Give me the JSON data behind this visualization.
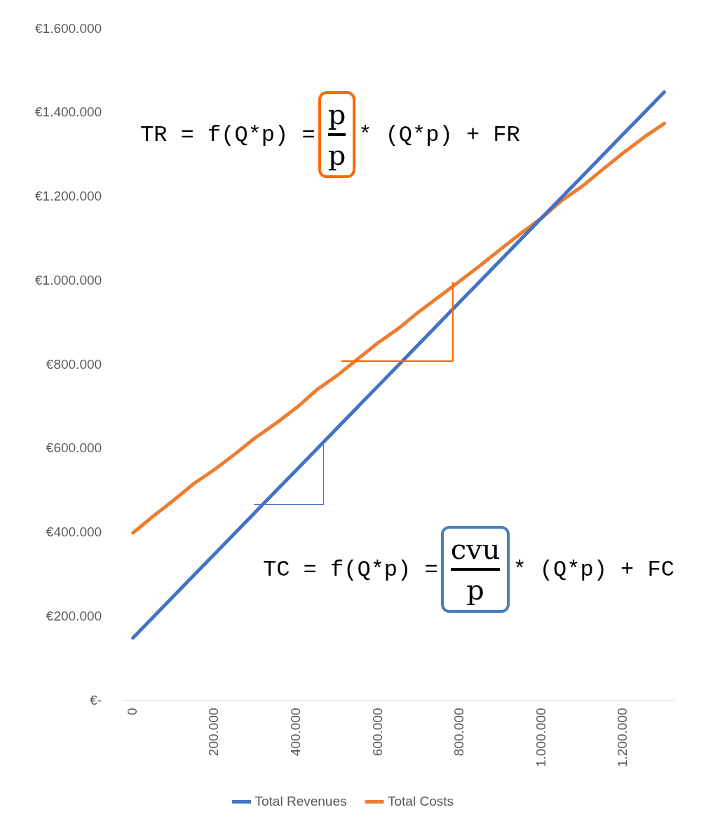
{
  "chart_data": {
    "type": "line",
    "categories": [
      "0",
      null,
      null,
      null,
      "200.000",
      null,
      null,
      null,
      "400.000",
      null,
      null,
      null,
      "600.000",
      null,
      null,
      null,
      "800.000",
      null,
      null,
      null,
      "1.000.000",
      null,
      null,
      null,
      "1.200.000",
      null,
      null
    ],
    "series": [
      {
        "name": "Total Revenues",
        "color": "#4472c4",
        "values": [
          150000,
          200000,
          250000,
          300000,
          350000,
          400000,
          450000,
          500000,
          550000,
          600000,
          650000,
          700000,
          750000,
          800000,
          850000,
          900000,
          950000,
          1000000,
          1050000,
          1100000,
          1150000,
          1200000,
          1250000,
          1300000,
          1350000,
          1400000,
          1450000
        ]
      },
      {
        "name": "Total Costs",
        "color": "#ed7d31",
        "values": [
          400000,
          440000,
          478000,
          518000,
          551000,
          588000,
          627000,
          661000,
          698000,
          741000,
          775000,
          814000,
          853000,
          887000,
          927000,
          963000,
          1000000,
          1037000,
          1076000,
          1114000,
          1150000,
          1192000,
          1226000,
          1266000,
          1305000,
          1342000,
          1375000
        ]
      }
    ],
    "ylim": [
      0,
      1600000
    ],
    "yticks": [
      {
        "value": 0,
        "label": "€-"
      },
      {
        "value": 200000,
        "label": "€200.000"
      },
      {
        "value": 400000,
        "label": "€400.000"
      },
      {
        "value": 600000,
        "label": "€600.000"
      },
      {
        "value": 800000,
        "label": "€800.000"
      },
      {
        "value": 1000000,
        "label": "€1.000.000"
      },
      {
        "value": 1200000,
        "label": "€1.200.000"
      },
      {
        "value": 1400000,
        "label": "€1.400.000"
      },
      {
        "value": 1600000,
        "label": "€1.600.000"
      }
    ],
    "grid": false,
    "legend": "bottom",
    "marker": "none",
    "line_style": "solid",
    "annotations": [
      "TR = f(Q*p) =",
      "p",
      "p",
      "* (Q*p) + FR",
      "TC = f(Q*p) =",
      "cvu",
      "p",
      "* (Q*p) + FC"
    ]
  }
}
